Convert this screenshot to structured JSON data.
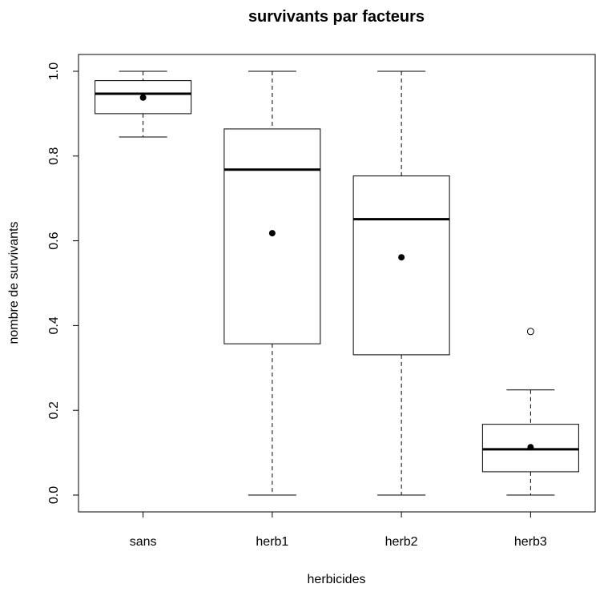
{
  "chart_data": {
    "type": "boxplot",
    "title": "survivants par facteurs",
    "xlabel": "herbicides",
    "ylabel": "nombre de survivants",
    "ylim": [
      -0.04,
      1.04
    ],
    "yticks": [
      0.0,
      0.2,
      0.4,
      0.6,
      0.8,
      1.0
    ],
    "ytick_labels": [
      "0.0",
      "0.2",
      "0.4",
      "0.6",
      "0.8",
      "1.0"
    ],
    "categories": [
      "sans",
      "herb1",
      "herb2",
      "herb3"
    ],
    "boxes": [
      {
        "category": "sans",
        "whisker_low": 0.845,
        "q1": 0.9,
        "median": 0.947,
        "q3": 0.978,
        "whisker_high": 1.0,
        "mean": 0.938,
        "outliers": []
      },
      {
        "category": "herb1",
        "whisker_low": 0.0,
        "q1": 0.357,
        "median": 0.768,
        "q3": 0.864,
        "whisker_high": 1.0,
        "mean": 0.618,
        "outliers": []
      },
      {
        "category": "herb2",
        "whisker_low": 0.0,
        "q1": 0.331,
        "median": 0.651,
        "q3": 0.753,
        "whisker_high": 1.0,
        "mean": 0.561,
        "outliers": []
      },
      {
        "category": "herb3",
        "whisker_low": 0.0,
        "q1": 0.055,
        "median": 0.108,
        "q3": 0.167,
        "whisker_high": 0.248,
        "mean": 0.113,
        "outliers": [
          0.386
        ]
      }
    ],
    "grid": false,
    "colors": {
      "box_fill": "#ffffff",
      "stroke": "#000000",
      "mean_point": "#000000"
    }
  }
}
